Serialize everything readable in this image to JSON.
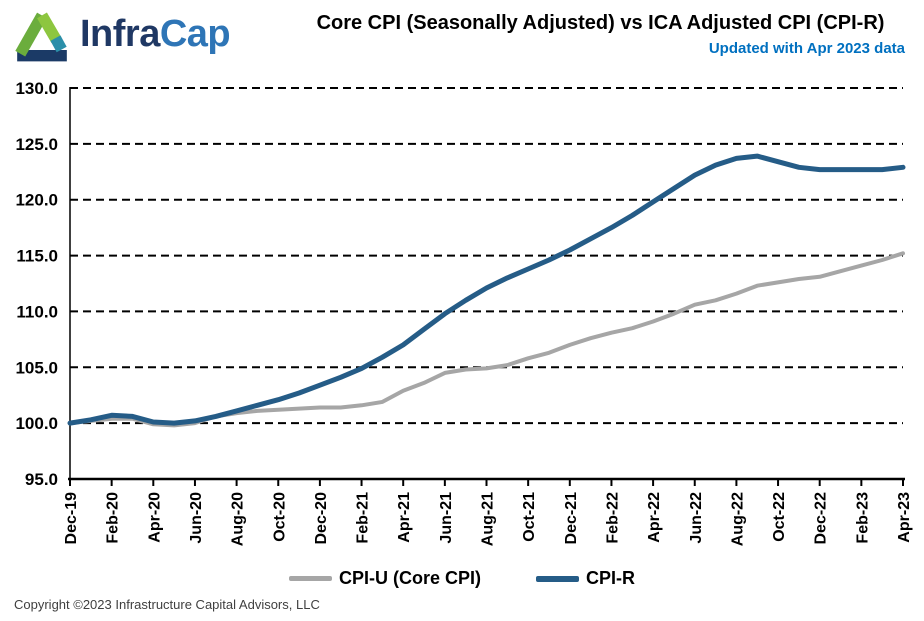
{
  "header": {
    "logo_primary": "Infra",
    "logo_secondary": "Cap",
    "title": "Core CPI (Seasonally Adjusted) vs ICA Adjusted CPI (CPI-R)",
    "subtitle": "Updated with Apr 2023 data",
    "subtitle_color": "#0070C0"
  },
  "chart_data": {
    "type": "line",
    "title": "Core CPI (Seasonally Adjusted) vs ICA Adjusted CPI (CPI-R)",
    "x": [
      "Dec-19",
      "Jan-20",
      "Feb-20",
      "Mar-20",
      "Apr-20",
      "May-20",
      "Jun-20",
      "Jul-20",
      "Aug-20",
      "Sep-20",
      "Oct-20",
      "Nov-20",
      "Dec-20",
      "Jan-21",
      "Feb-21",
      "Mar-21",
      "Apr-21",
      "May-21",
      "Jun-21",
      "Jul-21",
      "Aug-21",
      "Sep-21",
      "Oct-21",
      "Nov-21",
      "Dec-21",
      "Jan-22",
      "Feb-22",
      "Mar-22",
      "Apr-22",
      "May-22",
      "Jun-22",
      "Jul-22",
      "Aug-22",
      "Sep-22",
      "Oct-22",
      "Nov-22",
      "Dec-22",
      "Jan-23",
      "Feb-23",
      "Mar-23",
      "Apr-23"
    ],
    "x_tick_every": 2,
    "x_tick_labels": [
      "Dec-19",
      "Feb-20",
      "Apr-20",
      "Jun-20",
      "Aug-20",
      "Oct-20",
      "Dec-20",
      "Feb-21",
      "Apr-21",
      "Jun-21",
      "Aug-21",
      "Oct-21",
      "Dec-21",
      "Feb-22",
      "Apr-22",
      "Jun-22",
      "Aug-22",
      "Oct-22",
      "Dec-22",
      "Feb-23",
      "Apr-23"
    ],
    "ylim": [
      95.0,
      130.0
    ],
    "ytick_step": 5,
    "ytick_labels": [
      "95.0",
      "100.0",
      "105.0",
      "110.0",
      "115.0",
      "120.0",
      "125.0",
      "130.0"
    ],
    "grid": "horizontal-dashed-black",
    "legend_position": "bottom-center",
    "series": [
      {
        "name": "CPI-U (Core CPI)",
        "color": "#A6A6A6",
        "width": 4,
        "values": [
          100.0,
          100.2,
          100.4,
          100.4,
          99.9,
          99.8,
          100.0,
          100.6,
          100.9,
          101.1,
          101.2,
          101.3,
          101.4,
          101.4,
          101.6,
          101.9,
          102.9,
          103.6,
          104.5,
          104.8,
          104.9,
          105.2,
          105.8,
          106.3,
          107.0,
          107.6,
          108.1,
          108.5,
          109.1,
          109.8,
          110.6,
          111.0,
          111.6,
          112.3,
          112.6,
          112.9,
          113.1,
          113.6,
          114.1,
          114.6,
          115.2
        ]
      },
      {
        "name": "CPI-R",
        "color": "#255C87",
        "width": 5,
        "values": [
          100.0,
          100.3,
          100.7,
          100.6,
          100.1,
          100.0,
          100.2,
          100.6,
          101.1,
          101.6,
          102.1,
          102.7,
          103.4,
          104.1,
          104.9,
          105.9,
          107.0,
          108.4,
          109.8,
          111.0,
          112.1,
          113.0,
          113.8,
          114.6,
          115.5,
          116.5,
          117.5,
          118.6,
          119.8,
          121.0,
          122.2,
          123.1,
          123.7,
          123.9,
          123.4,
          122.9,
          122.7,
          122.7,
          122.7,
          122.7,
          122.9
        ]
      }
    ]
  },
  "footer": {
    "copyright": "Copyright ©2023 Infrastructure Capital Advisors, LLC"
  }
}
